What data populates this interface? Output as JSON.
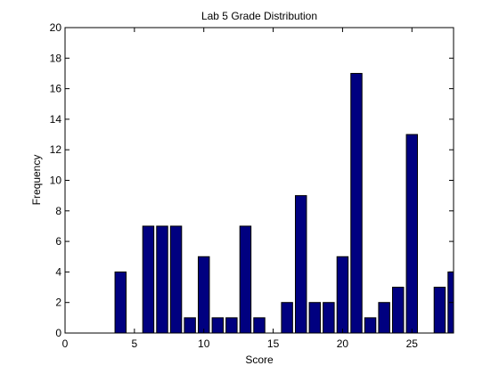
{
  "chart_data": {
    "type": "bar",
    "title": "Lab 5 Grade Distribution",
    "xlabel": "Score",
    "ylabel": "Frequency",
    "xlim": [
      0,
      28
    ],
    "ylim": [
      0,
      20
    ],
    "xticks": [
      0,
      5,
      10,
      15,
      20,
      25
    ],
    "yticks": [
      0,
      2,
      4,
      6,
      8,
      10,
      12,
      14,
      16,
      18,
      20
    ],
    "grid": false,
    "bar_color": "#000080",
    "x": [
      4,
      6,
      7,
      8,
      9,
      10,
      11,
      12,
      13,
      14,
      16,
      17,
      18,
      19,
      20,
      21,
      22,
      23,
      24,
      25,
      27,
      28
    ],
    "values": [
      4,
      7,
      7,
      7,
      1,
      5,
      1,
      1,
      7,
      1,
      2,
      9,
      2,
      2,
      5,
      17,
      1,
      2,
      3,
      13,
      3,
      4
    ]
  }
}
